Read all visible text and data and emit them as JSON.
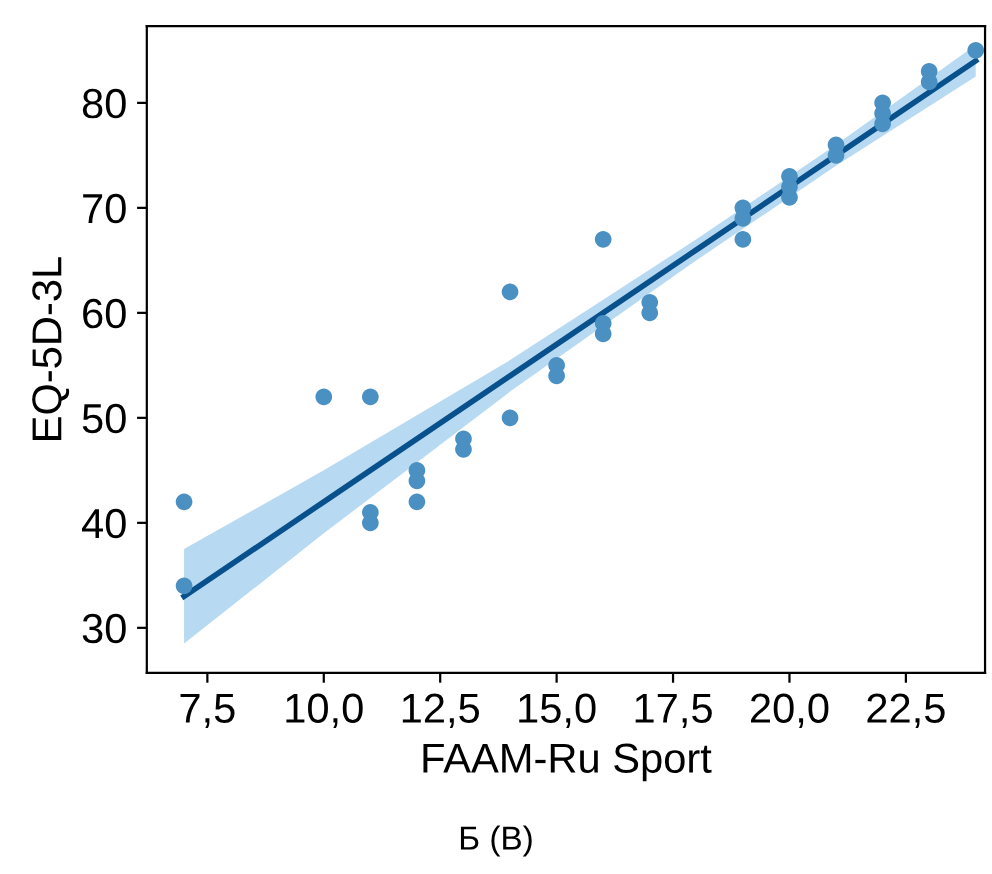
{
  "chart_data": {
    "type": "scatter",
    "xlabel": "FAAM-Ru Sport",
    "ylabel": "EQ-5D-3L",
    "annotations": [
      "Б (В)"
    ],
    "series": [
      {
        "marker": "circle",
        "color": "#4a90c2",
        "x": [
          7,
          7,
          10,
          11,
          11,
          11,
          12,
          12,
          12,
          13,
          13,
          14,
          14,
          15,
          15,
          16,
          16,
          16,
          17,
          17,
          19,
          19,
          19,
          20,
          20,
          20,
          21,
          21,
          22,
          22,
          22,
          23,
          23,
          24
        ],
        "values": [
          42,
          34,
          52,
          52,
          41,
          40,
          45,
          44,
          42,
          48,
          47,
          62,
          50,
          55,
          54,
          67,
          59,
          58,
          61,
          60,
          70,
          69,
          67,
          73,
          72,
          71,
          76,
          75,
          80,
          79,
          78,
          83,
          82,
          85
        ]
      },
      {
        "type": "line",
        "marker": "none",
        "color": "#08518c",
        "x": [
          7,
          10,
          14,
          18,
          21,
          24
        ],
        "values": [
          33,
          42,
          54,
          66,
          75,
          84
        ],
        "lower": [
          28.5,
          39,
          52.5,
          65,
          74,
          82.5
        ],
        "upper": [
          37.5,
          45,
          55.5,
          67,
          76,
          85.5
        ]
      }
    ],
    "xlim": [
      6.2,
      24.2
    ],
    "ylim": [
      25.7,
      87.3
    ],
    "xticks": [
      {
        "value": 7.5,
        "label": "7,5"
      },
      {
        "value": 10,
        "label": "10,0"
      },
      {
        "value": 12.5,
        "label": "12,5"
      },
      {
        "value": 15,
        "label": "15,0"
      },
      {
        "value": 17.5,
        "label": "17,5"
      },
      {
        "value": 20,
        "label": "20,0"
      },
      {
        "value": 22.5,
        "label": "22,5"
      }
    ],
    "yticks": [
      30,
      40,
      50,
      60,
      70,
      80
    ],
    "grid": false,
    "legend": false
  }
}
